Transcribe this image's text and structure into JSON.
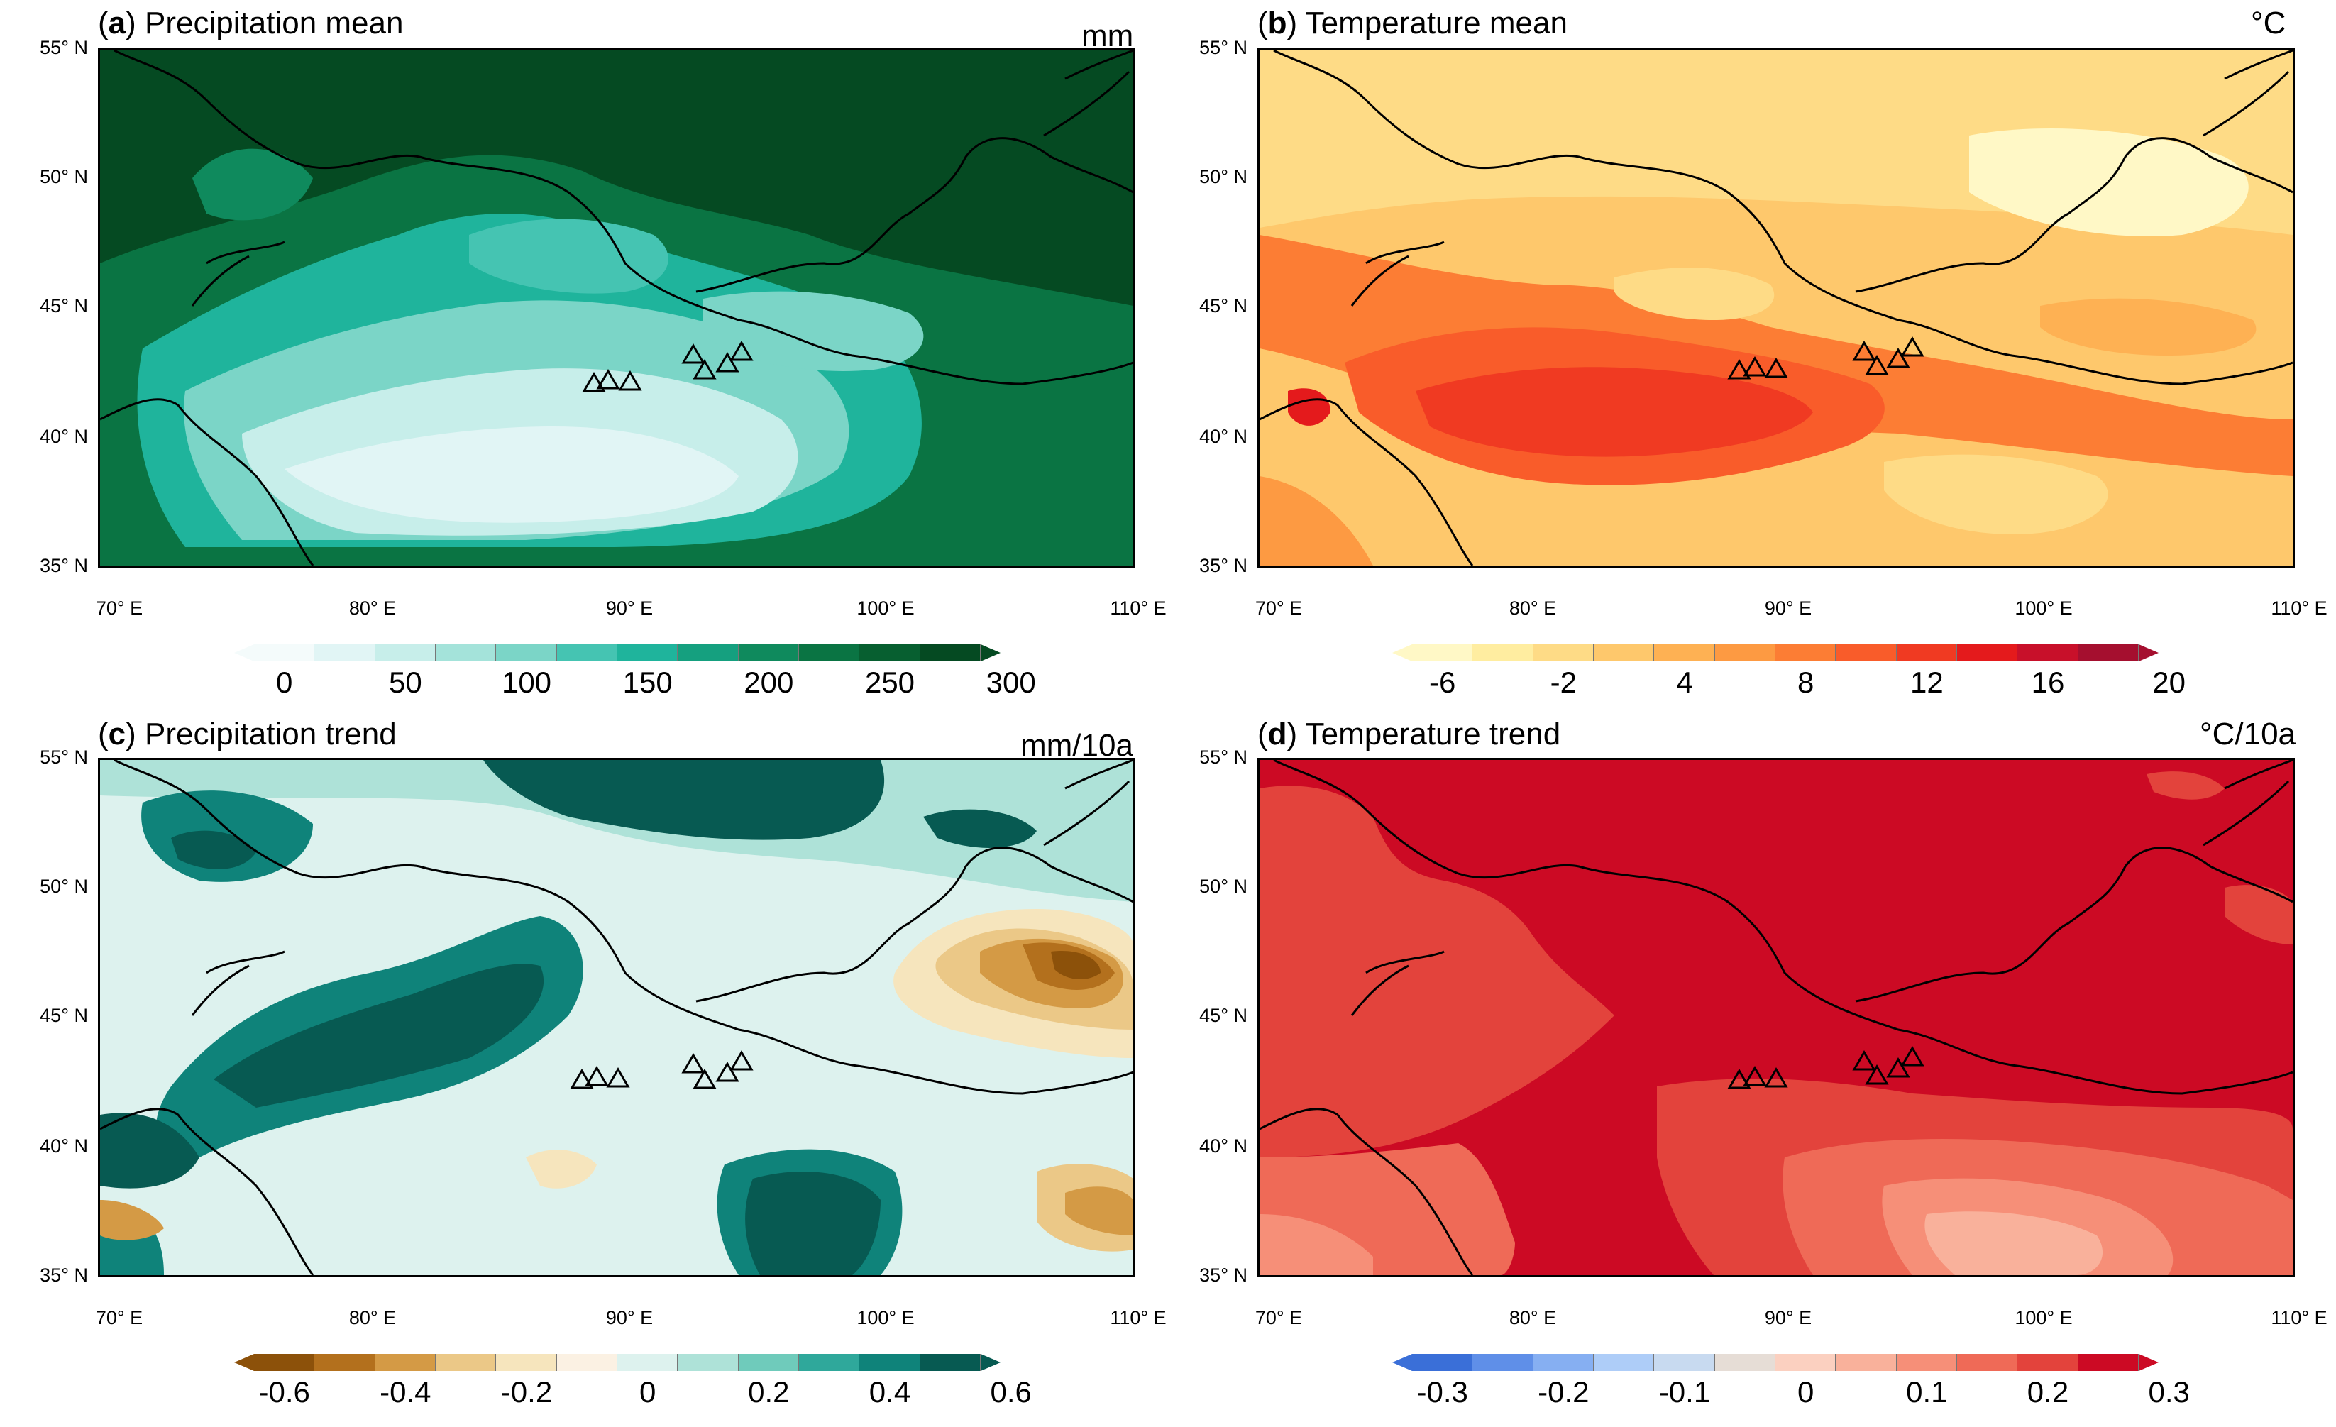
{
  "panels": [
    {
      "id": "a",
      "letter": "a",
      "title": "Precipitation mean",
      "unit": "mm",
      "colorbar": {
        "colors": [
          "#f4fbfb",
          "#e1f5f5",
          "#c7eeea",
          "#a4e3da",
          "#7bd5c7",
          "#45c4b2",
          "#1fb49c",
          "#15a07f",
          "#0f8a5d",
          "#0a7443",
          "#075f30",
          "#054a22"
        ],
        "labels": [
          "0",
          "50",
          "100",
          "150",
          "200",
          "250",
          "300"
        ]
      }
    },
    {
      "id": "b",
      "letter": "b",
      "title": "Temperature mean",
      "unit": "°C",
      "colorbar": {
        "colors": [
          "#fff8c6",
          "#ffeda0",
          "#fedb86",
          "#fec86c",
          "#feb153",
          "#fd9a42",
          "#fc7d34",
          "#f95c2a",
          "#f03a22",
          "#e41a1c",
          "#c8102a",
          "#a50f2f"
        ],
        "labels": [
          "-6",
          "-2",
          "4",
          "8",
          "12",
          "16",
          "20"
        ]
      }
    },
    {
      "id": "c",
      "letter": "c",
      "title": "Precipitation trend",
      "unit": "mm/10a",
      "colorbar": {
        "colors": [
          "#8c510a",
          "#b3701d",
          "#d49a45",
          "#ebc887",
          "#f6e5bd",
          "#fbf1e3",
          "#ddf2ee",
          "#aee2d8",
          "#6fcbbb",
          "#2fa89b",
          "#0f837a",
          "#075a52"
        ],
        "labels": [
          "-0.6",
          "-0.4",
          "-0.2",
          "0",
          "0.2",
          "0.4",
          "0.6"
        ]
      }
    },
    {
      "id": "d",
      "letter": "d",
      "title": "Temperature trend",
      "unit": "°C/10a",
      "colorbar": {
        "colors": [
          "#3a6fd8",
          "#5f8fe8",
          "#86aff2",
          "#aecdf8",
          "#c8daf0",
          "#e6ddd6",
          "#fbd0c0",
          "#f9b19b",
          "#f68f78",
          "#ef6a57",
          "#e3433c",
          "#cc0a24"
        ],
        "labels": [
          "-0.3",
          "-0.2",
          "-0.1",
          "0",
          "0.1",
          "0.2",
          "0.3"
        ]
      }
    }
  ],
  "axes": {
    "y_labels": [
      "55° N",
      "50° N",
      "45° N",
      "40° N",
      "35° N"
    ],
    "x_labels": [
      "70° E",
      "80° E",
      "90° E",
      "100° E",
      "110° E"
    ]
  }
}
